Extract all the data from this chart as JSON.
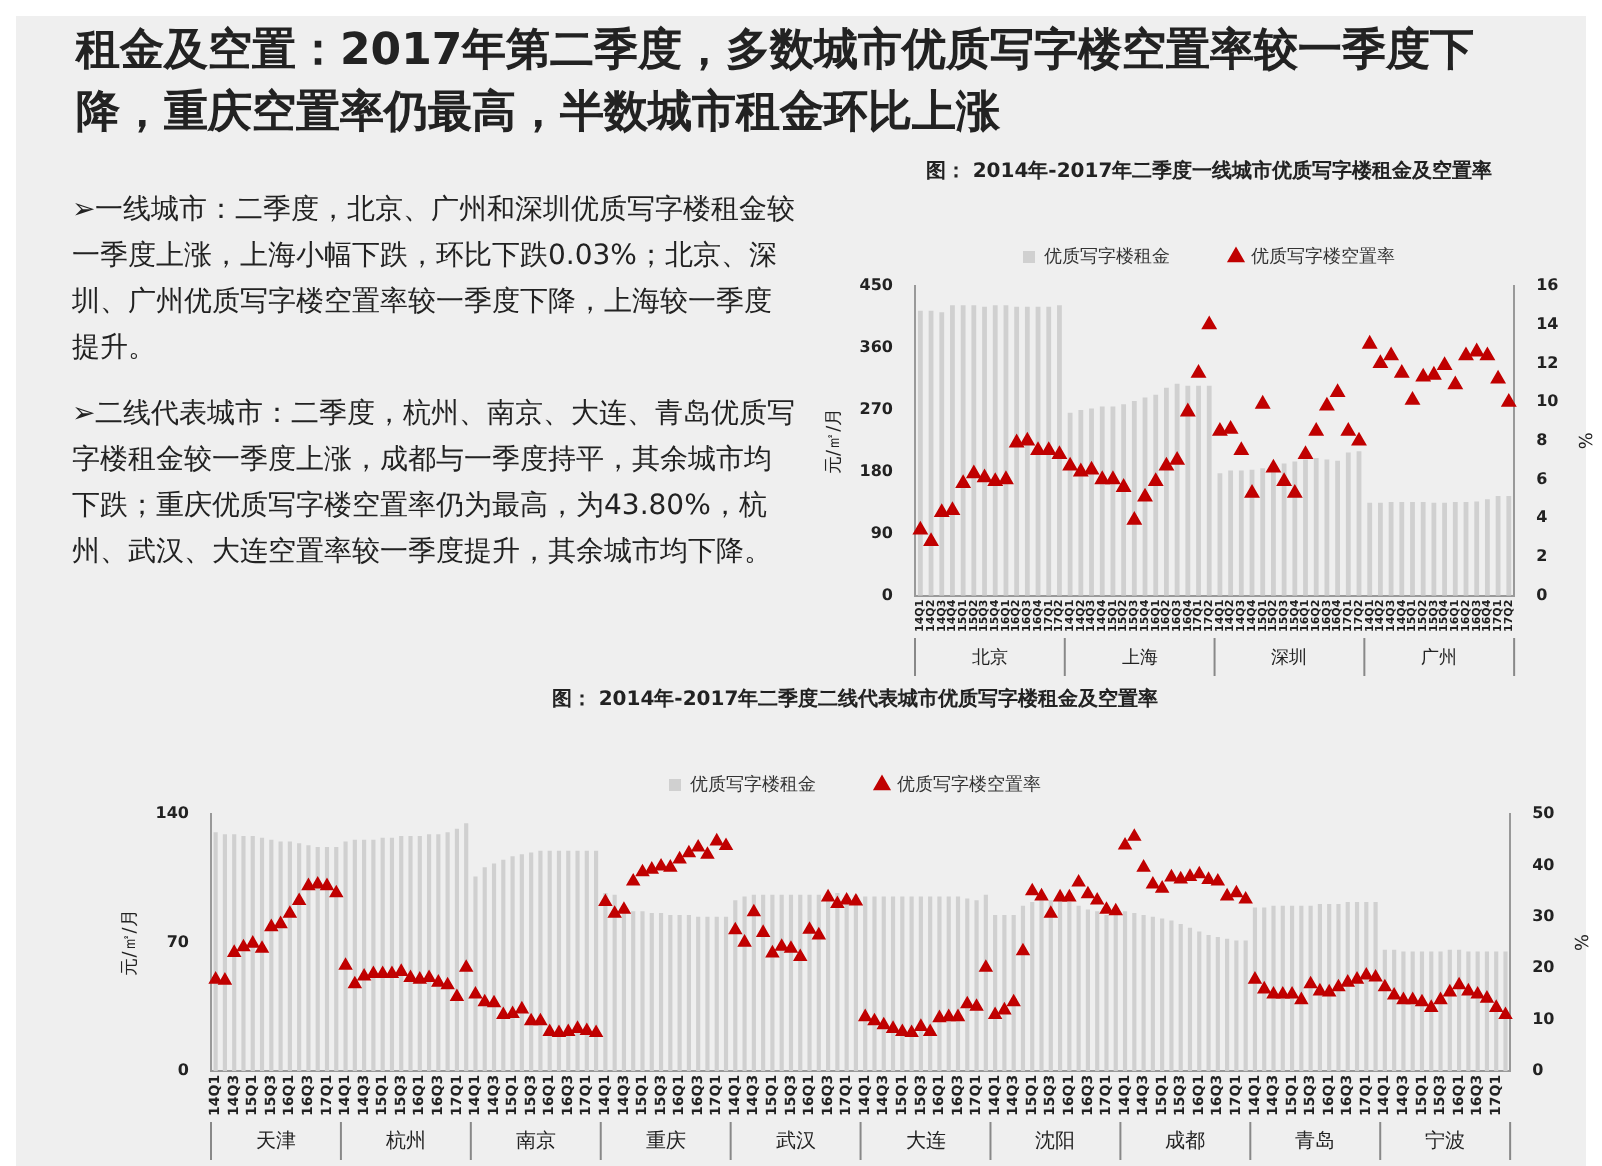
{
  "chart_data": [
    {
      "type": "other",
      "title": "租金及空置：2017年第二季度，多数城市优质写字楼空置率较一季度下降，重庆空置率仍最高，半数城市租金环比上涨",
      "annotations": [
        "➢一线城市：二季度，北京、广州和深圳优质写字楼租金较一季度上涨，上海小幅下跌，环比下跌0.03%；北京、深圳、广州优质写字楼空置率较一季度下降，上海较一季度提升。",
        "➢二线代表城市：二季度，杭州、南京、大连、青岛优质写字楼租金较一季度上涨，成都与一季度持平，其余城市均下跌；重庆优质写字楼空置率仍为最高，为43.80%，杭州、武汉、大连空置率较一季度提升，其余城市均下降。"
      ]
    },
    {
      "type": "bar",
      "title": "图： 2014年-2017年二季度一线城市优质写字楼租金及空置率",
      "ylabel": "元/㎡/月",
      "y2label": "%",
      "categories": [
        "14Q1",
        "14Q2",
        "14Q3",
        "14Q4",
        "15Q1",
        "15Q2",
        "15Q3",
        "15Q4",
        "16Q1",
        "16Q2",
        "16Q3",
        "16Q4",
        "17Q1",
        "17Q2",
        "14Q1",
        "14Q2",
        "14Q3",
        "14Q4",
        "15Q1",
        "15Q2",
        "15Q3",
        "15Q4",
        "16Q1",
        "16Q2",
        "16Q3",
        "16Q4",
        "17Q1",
        "17Q2",
        "14Q1",
        "14Q2",
        "14Q3",
        "14Q4",
        "15Q1",
        "15Q2",
        "15Q3",
        "15Q4",
        "16Q1",
        "16Q2",
        "16Q3",
        "16Q4",
        "17Q1",
        "17Q2",
        "14Q1",
        "14Q2",
        "14Q3",
        "14Q4",
        "15Q1",
        "15Q2",
        "15Q3",
        "15Q4",
        "16Q1",
        "16Q2",
        "16Q3",
        "16Q4",
        "17Q1",
        "17Q2"
      ],
      "series": [
        {
          "name": "优质写字楼租金",
          "type": "bar",
          "color": "#d0d0d0",
          "values": [
            414,
            414,
            412,
            422,
            422,
            422,
            420,
            422,
            422,
            420,
            420,
            420,
            420,
            422,
            266,
            270,
            272,
            275,
            275,
            278,
            283,
            288,
            292,
            302,
            308,
            305,
            305,
            305,
            178,
            182,
            182,
            183,
            185,
            190,
            192,
            195,
            198,
            200,
            198,
            196,
            208,
            210,
            135,
            135,
            136,
            136,
            136,
            136,
            135,
            135,
            136,
            136,
            137,
            140,
            145,
            145
          ]
        },
        {
          "name": "优质写字楼空置率",
          "type": "scatter",
          "axis": "y2",
          "color": "#c00000",
          "values": [
            3.4,
            2.8,
            4.3,
            4.4,
            5.8,
            6.3,
            6.1,
            5.9,
            6.0,
            7.9,
            8.0,
            7.5,
            7.5,
            7.3,
            6.7,
            6.4,
            6.5,
            6.0,
            6.0,
            5.6,
            3.9,
            5.1,
            5.9,
            6.7,
            7.0,
            9.5,
            11.5,
            14.0,
            8.5,
            8.6,
            7.5,
            5.3,
            9.9,
            6.6,
            5.9,
            5.3,
            7.3,
            8.5,
            9.8,
            10.5,
            8.5,
            8.0,
            13.0,
            12.0,
            12.4,
            11.5,
            10.1,
            11.3,
            11.4,
            11.9,
            10.9,
            12.4,
            12.6,
            12.4,
            11.2,
            10.0
          ]
        }
      ],
      "ylim": [
        0,
        450
      ],
      "yticks": [
        0,
        90,
        180,
        270,
        360,
        450
      ],
      "y2lim": [
        0,
        16
      ],
      "y2ticks": [
        0,
        2,
        4,
        6,
        8,
        10,
        12,
        14,
        16
      ],
      "annotations": [
        "北京",
        "上海",
        "深圳",
        "广州"
      ],
      "legend": "top",
      "grid": false,
      "marker": "triangle"
    },
    {
      "type": "bar",
      "title": "图： 2014年-2017年二季度二线代表城市优质写字楼租金及空置率",
      "ylabel": "元/㎡/月",
      "y2label": "%",
      "categories": [
        "14Q1",
        null,
        "14Q3",
        null,
        "15Q1",
        null,
        "15Q3",
        null,
        "16Q1",
        null,
        "16Q3",
        null,
        "17Q1",
        null,
        "14Q1",
        null,
        "14Q3",
        null,
        "15Q1",
        null,
        "15Q3",
        null,
        "16Q1",
        null,
        "16Q3",
        null,
        "17Q1",
        null,
        "14Q1",
        null,
        "14Q3",
        null,
        "15Q1",
        null,
        "15Q3",
        null,
        "16Q1",
        null,
        "16Q3",
        null,
        "17Q1",
        null,
        "14Q1",
        null,
        "14Q3",
        null,
        "15Q1",
        null,
        "15Q3",
        null,
        "16Q1",
        null,
        "16Q3",
        null,
        "17Q1",
        null,
        "14Q1",
        null,
        "14Q3",
        null,
        "15Q1",
        null,
        "15Q3",
        null,
        "16Q1",
        null,
        "16Q3",
        null,
        "17Q1",
        null,
        "14Q1",
        null,
        "14Q3",
        null,
        "15Q1",
        null,
        "15Q3",
        null,
        "16Q1",
        null,
        "16Q3",
        null,
        "17Q1",
        null,
        "14Q1",
        null,
        "14Q3",
        null,
        "15Q1",
        null,
        "15Q3",
        null,
        "16Q1",
        null,
        "16Q3",
        null,
        "17Q1",
        null,
        "14Q1",
        null,
        "14Q3",
        null,
        "15Q1",
        null,
        "15Q3",
        null,
        "16Q1",
        null,
        "16Q3",
        null,
        "17Q1",
        null,
        "14Q1",
        null,
        "14Q3",
        null,
        "15Q1",
        null,
        "15Q3",
        null,
        "16Q1",
        null,
        "16Q3",
        null,
        "17Q1",
        null,
        "14Q1",
        null,
        "14Q3",
        null,
        "15Q1",
        null,
        "15Q3",
        null,
        "16Q1",
        null,
        "16Q3",
        null,
        "17Q1",
        null
      ],
      "series": [
        {
          "name": "优质写字楼租金",
          "type": "bar",
          "color": "#d0d0d0",
          "values": [
            130,
            129,
            129,
            128,
            128,
            127,
            126,
            125,
            125,
            124,
            123,
            122,
            122,
            122,
            125,
            126,
            126,
            126,
            127,
            127,
            128,
            128,
            128,
            129,
            129,
            130,
            132,
            135,
            106,
            111,
            113,
            115,
            117,
            118,
            119,
            120,
            120,
            120,
            120,
            120,
            120,
            120,
            97,
            96,
            88,
            87,
            87,
            86,
            86,
            85,
            85,
            85,
            84,
            84,
            84,
            84,
            93,
            95,
            96,
            96,
            96,
            96,
            96,
            96,
            96,
            96,
            96,
            97,
            96,
            96,
            95,
            95,
            95,
            95,
            95,
            95,
            95,
            95,
            95,
            95,
            95,
            94,
            93,
            96,
            85,
            85,
            85,
            90,
            92,
            93,
            93,
            93,
            92,
            90,
            88,
            87,
            85,
            85,
            87,
            86,
            85,
            84,
            83,
            82,
            80,
            78,
            76,
            74,
            73,
            72,
            71,
            71,
            89,
            89,
            90,
            90,
            90,
            90,
            90,
            91,
            91,
            91,
            92,
            92,
            92,
            92,
            66,
            66,
            65,
            65,
            65,
            65,
            65,
            66,
            66,
            65,
            65,
            65,
            65,
            65
          ]
        },
        {
          "name": "优质写字楼空置率",
          "type": "scatter",
          "axis": "y2",
          "color": "#c00000",
          "values": [
            17.8,
            17.6,
            23.0,
            24.1,
            24.8,
            23.8,
            28.0,
            28.6,
            30.6,
            33.1,
            36.0,
            36.3,
            36.0,
            34.6,
            20.5,
            16.9,
            18.4,
            18.9,
            18.9,
            18.9,
            19.3,
            18.1,
            17.8,
            18.1,
            17.2,
            16.7,
            14.4,
            20.1,
            14.9,
            13.4,
            13.2,
            10.9,
            11.1,
            12.0,
            9.7,
            9.7,
            7.6,
            7.4,
            7.6,
            8.2,
            7.8,
            7.4,
            32.9,
            30.6,
            31.4,
            36.9,
            38.7,
            39.2,
            39.8,
            39.6,
            41.2,
            42.4,
            43.5,
            42.1,
            44.7,
            43.8,
            27.4,
            25.0,
            30.9,
            26.9,
            22.9,
            24.2,
            23.8,
            22.2,
            27.5,
            26.4,
            33.8,
            32.5,
            33.2,
            33.0,
            10.5,
            9.7,
            8.9,
            8.2,
            7.6,
            7.4,
            8.6,
            7.6,
            10.3,
            10.5,
            10.5,
            13.0,
            12.5,
            20.1,
            10.9,
            11.8,
            13.4,
            23.3,
            35.0,
            34.0,
            30.6,
            33.8,
            33.8,
            36.7,
            34.4,
            33.2,
            31.4,
            31.1,
            43.9,
            45.6,
            39.6,
            36.3,
            35.5,
            37.7,
            37.3,
            37.8,
            38.3,
            37.2,
            36.9,
            34.0,
            34.6,
            33.4,
            17.8,
            15.9,
            14.9,
            14.9,
            14.9,
            13.8,
            16.9,
            15.5,
            15.3,
            16.3,
            17.2,
            17.8,
            18.6,
            18.2,
            16.3,
            14.7,
            13.8,
            13.8,
            13.4,
            12.3,
            13.8,
            15.3,
            16.7,
            15.5,
            14.9,
            14.1,
            12.3,
            10.9
          ]
        }
      ],
      "ylim": [
        0,
        140
      ],
      "yticks": [
        0,
        70,
        140
      ],
      "y2lim": [
        0,
        50
      ],
      "y2ticks": [
        0,
        10,
        20,
        30,
        40,
        50
      ],
      "annotations": [
        "天津",
        "杭州",
        "南京",
        "重庆",
        "武汉",
        "大连",
        "沈阳",
        "成都",
        "青岛",
        "宁波"
      ],
      "legend": "top",
      "grid": false,
      "marker": "triangle"
    }
  ]
}
